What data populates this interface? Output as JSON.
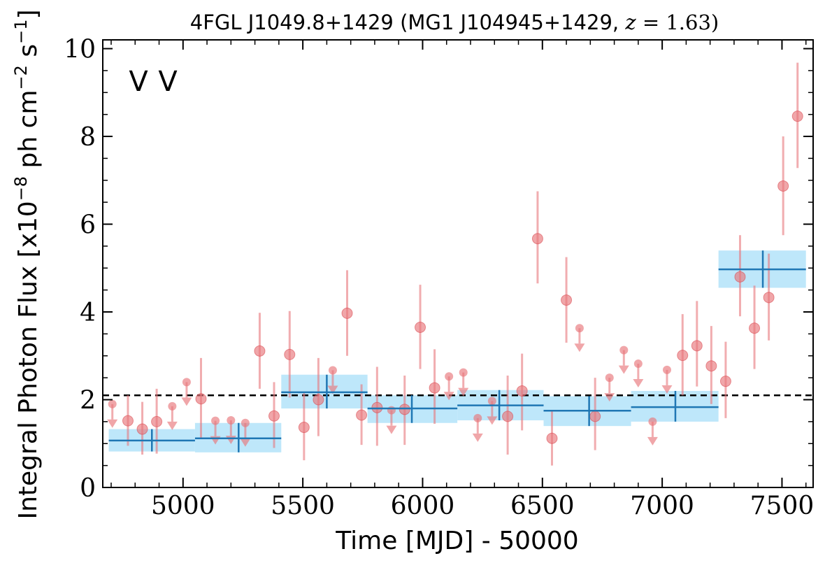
{
  "chart_data": {
    "type": "scatter",
    "title": "4FGL J1049.8+1429 (MG1 J104945+1429, z = 1.63)",
    "title_parts": {
      "main": "4FGL J1049.8+1429 (MG1 J104945+1429, ",
      "z_var": "z",
      "z_eq": " = 1.63)"
    },
    "xlabel": "Time [MJD] - 50000",
    "ylabel": "Integral Photon Flux [x10^-8 ph cm^-2 s^-1]",
    "ylabel_parts": {
      "prefix": "Integral Photon Flux [x10",
      "exp1": "−8",
      "mid": " ph cm",
      "exp2": "−2",
      "mid2": " s",
      "exp3": "−1",
      "suffix": "]"
    },
    "xlim": [
      4665,
      7630
    ],
    "ylim": [
      0,
      10.2
    ],
    "xticks": [
      5000,
      5500,
      6000,
      6500,
      7000,
      7500
    ],
    "xtick_labels": [
      "5000",
      "5500",
      "6000",
      "6500",
      "7000",
      "7500"
    ],
    "yticks": [
      0,
      2,
      4,
      6,
      8,
      10
    ],
    "ytick_labels": [
      "0",
      "2",
      "4",
      "6",
      "8",
      "10"
    ],
    "average_line": 2.1,
    "legend": {
      "entries": [
        {
          "text": "V",
          "color": "#1f77b4"
        },
        {
          "text": "V",
          "color": "#d62728"
        }
      ],
      "placement": "top-left"
    },
    "colors": {
      "binned": "#1f77b4",
      "binned_band": "#b3e3f9",
      "points": "#e8777b",
      "average_line": "#000000"
    },
    "binned_series": [
      {
        "x_start": 4690,
        "x_end": 5050,
        "x_center": 4870,
        "y": 1.07,
        "y_low": 0.82,
        "y_high": 1.33
      },
      {
        "x_start": 5050,
        "x_end": 5410,
        "x_center": 5232,
        "y": 1.12,
        "y_low": 0.8,
        "y_high": 1.47
      },
      {
        "x_start": 5410,
        "x_end": 5770,
        "x_center": 5600,
        "y": 2.17,
        "y_low": 1.8,
        "y_high": 2.57
      },
      {
        "x_start": 5770,
        "x_end": 6145,
        "x_center": 5955,
        "y": 1.8,
        "y_low": 1.47,
        "y_high": 2.1
      },
      {
        "x_start": 6145,
        "x_end": 6505,
        "x_center": 6320,
        "y": 1.87,
        "y_low": 1.53,
        "y_high": 2.22
      },
      {
        "x_start": 6505,
        "x_end": 6870,
        "x_center": 6695,
        "y": 1.75,
        "y_low": 1.4,
        "y_high": 2.08
      },
      {
        "x_start": 6870,
        "x_end": 7235,
        "x_center": 7055,
        "y": 1.83,
        "y_low": 1.5,
        "y_high": 2.2
      },
      {
        "x_start": 7235,
        "x_end": 7600,
        "x_center": 7420,
        "y": 4.97,
        "y_low": 4.55,
        "y_high": 5.4
      }
    ],
    "detections": [
      {
        "x": 4770,
        "y": 1.52,
        "y_low": 0.95,
        "y_high": 2.1
      },
      {
        "x": 4830,
        "y": 1.33,
        "y_low": 0.75,
        "y_high": 1.95
      },
      {
        "x": 4890,
        "y": 1.5,
        "y_low": 0.77,
        "y_high": 2.25
      },
      {
        "x": 5075,
        "y": 2.02,
        "y_low": 1.1,
        "y_high": 2.95
      },
      {
        "x": 5320,
        "y": 3.11,
        "y_low": 2.25,
        "y_high": 3.98
      },
      {
        "x": 5380,
        "y": 1.63,
        "y_low": 0.9,
        "y_high": 2.4
      },
      {
        "x": 5445,
        "y": 3.03,
        "y_low": 2.05,
        "y_high": 4.02
      },
      {
        "x": 5505,
        "y": 1.37,
        "y_low": 0.62,
        "y_high": 2.15
      },
      {
        "x": 5565,
        "y": 2.0,
        "y_low": 1.17,
        "y_high": 2.95
      },
      {
        "x": 5685,
        "y": 3.97,
        "y_low": 3.0,
        "y_high": 4.95
      },
      {
        "x": 5745,
        "y": 1.65,
        "y_low": 0.97,
        "y_high": 2.35
      },
      {
        "x": 5810,
        "y": 1.82,
        "y_low": 0.95,
        "y_high": 2.75
      },
      {
        "x": 5925,
        "y": 1.78,
        "y_low": 0.97,
        "y_high": 2.55
      },
      {
        "x": 5990,
        "y": 3.65,
        "y_low": 2.7,
        "y_high": 4.62
      },
      {
        "x": 6050,
        "y": 2.27,
        "y_low": 1.45,
        "y_high": 3.15
      },
      {
        "x": 6355,
        "y": 1.62,
        "y_low": 0.75,
        "y_high": 2.55
      },
      {
        "x": 6415,
        "y": 2.2,
        "y_low": 1.3,
        "y_high": 3.05
      },
      {
        "x": 6480,
        "y": 5.67,
        "y_low": 4.65,
        "y_high": 6.75
      },
      {
        "x": 6540,
        "y": 1.12,
        "y_low": 0.5,
        "y_high": 1.75
      },
      {
        "x": 6600,
        "y": 4.27,
        "y_low": 3.3,
        "y_high": 5.25
      },
      {
        "x": 6720,
        "y": 1.62,
        "y_low": 0.85,
        "y_high": 2.5
      },
      {
        "x": 7085,
        "y": 3.01,
        "y_low": 2.1,
        "y_high": 3.95
      },
      {
        "x": 7145,
        "y": 3.23,
        "y_low": 2.3,
        "y_high": 4.25
      },
      {
        "x": 7205,
        "y": 2.77,
        "y_low": 1.9,
        "y_high": 3.68
      },
      {
        "x": 7265,
        "y": 2.42,
        "y_low": 1.58,
        "y_high": 3.32
      },
      {
        "x": 7325,
        "y": 4.8,
        "y_low": 3.9,
        "y_high": 5.75
      },
      {
        "x": 7385,
        "y": 3.63,
        "y_low": 2.7,
        "y_high": 4.6
      },
      {
        "x": 7445,
        "y": 4.33,
        "y_low": 3.35,
        "y_high": 5.33
      },
      {
        "x": 7505,
        "y": 6.87,
        "y_low": 5.75,
        "y_high": 8.0
      },
      {
        "x": 7565,
        "y": 8.46,
        "y_low": 7.28,
        "y_high": 9.68
      }
    ],
    "upper_limits": [
      {
        "x": 4705,
        "y": 1.9
      },
      {
        "x": 4955,
        "y": 1.85
      },
      {
        "x": 5015,
        "y": 2.4
      },
      {
        "x": 5135,
        "y": 1.52
      },
      {
        "x": 5200,
        "y": 1.53
      },
      {
        "x": 5260,
        "y": 1.47
      },
      {
        "x": 5625,
        "y": 2.67
      },
      {
        "x": 5870,
        "y": 1.76
      },
      {
        "x": 6110,
        "y": 2.53
      },
      {
        "x": 6170,
        "y": 2.62
      },
      {
        "x": 6230,
        "y": 1.58
      },
      {
        "x": 6290,
        "y": 1.97
      },
      {
        "x": 6655,
        "y": 3.63
      },
      {
        "x": 6780,
        "y": 2.5
      },
      {
        "x": 6840,
        "y": 3.13
      },
      {
        "x": 6900,
        "y": 2.82
      },
      {
        "x": 6960,
        "y": 1.5
      },
      {
        "x": 7020,
        "y": 2.68
      }
    ]
  }
}
